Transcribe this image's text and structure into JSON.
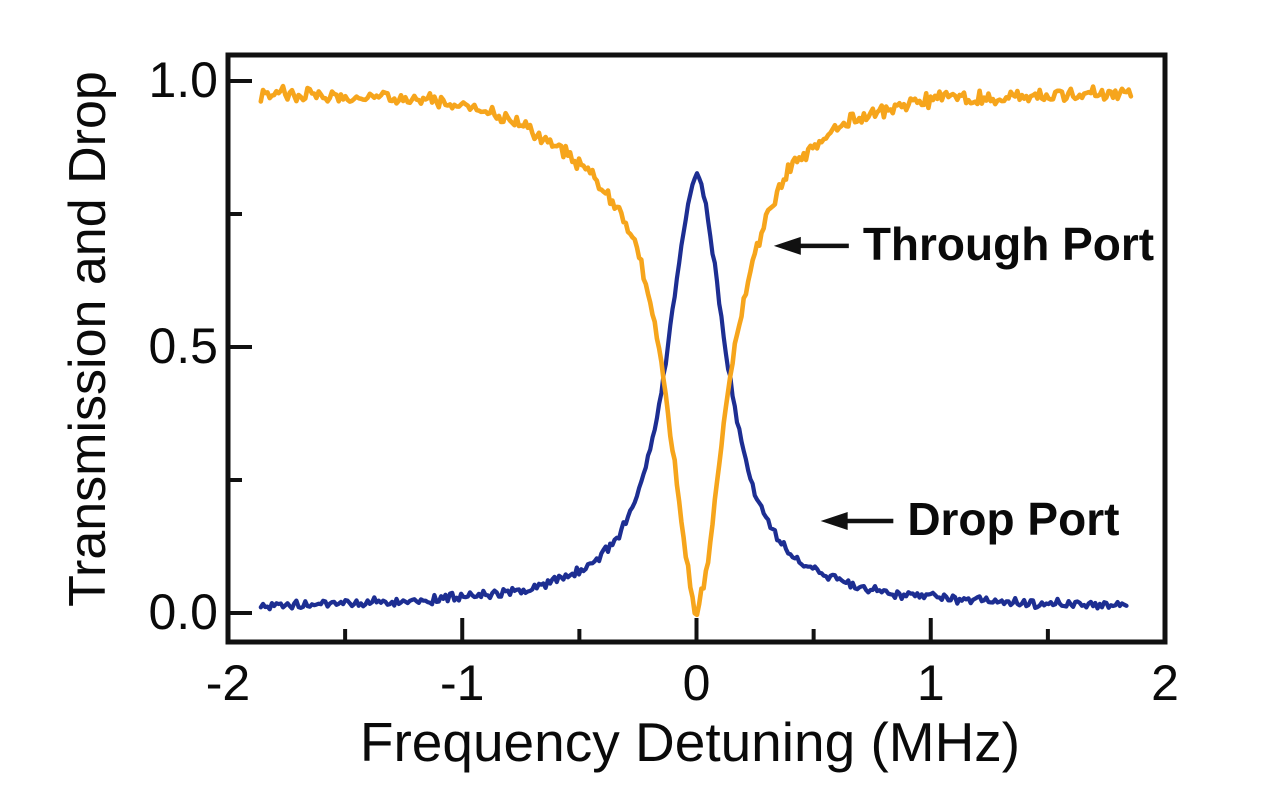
{
  "figure": {
    "kind": "experimental optical resonance spectrum, add-drop resonator",
    "background_color": "#ffffff",
    "axis_color": "#111111",
    "text_color": "#0a0a0a"
  },
  "chart_data": {
    "type": "line",
    "title": "",
    "xlabel": "Frequency Detuning (MHz)",
    "ylabel": "Transmission and Drop",
    "grid": false,
    "legend_position": "none (in-plot arrow annotations)",
    "x_axis": {
      "label": "Frequency Detuning (MHz)",
      "range": [
        -2,
        2
      ],
      "major_ticks": [
        -2,
        -1,
        0,
        1,
        2
      ],
      "major_tick_labels": [
        "-2",
        "-1",
        "0",
        "1",
        "2"
      ],
      "minor_ticks": [
        -1.5,
        -0.5,
        0.5,
        1.5
      ],
      "ticks_direction": "in"
    },
    "y_axis": {
      "label": "Transmission and Drop",
      "range_shown": [
        -0.055,
        1.05
      ],
      "major_ticks": [
        0.0,
        0.5,
        1.0
      ],
      "major_tick_labels": [
        "0.0",
        "0.5",
        "1.0"
      ],
      "minor_ticks": [
        0.25,
        0.75
      ],
      "ticks_direction": "in"
    },
    "series": [
      {
        "name": "Drop Port",
        "color": "#1D2E92",
        "line_width": 4.2,
        "noise_amplitude": 0.007,
        "shape": "Lorentzian peak, max ~0.83 at 0 MHz, baseline ~0.015, FWHM ~0.3 MHz",
        "points": [
          [
            -1.86,
            0.013
          ],
          [
            -1.7,
            0.015
          ],
          [
            -1.5,
            0.018
          ],
          [
            -1.3,
            0.021
          ],
          [
            -1.1,
            0.026
          ],
          [
            -0.95,
            0.031
          ],
          [
            -0.8,
            0.039
          ],
          [
            -0.7,
            0.047
          ],
          [
            -0.6,
            0.06
          ],
          [
            -0.5,
            0.079
          ],
          [
            -0.45,
            0.092
          ],
          [
            -0.4,
            0.11
          ],
          [
            -0.35,
            0.135
          ],
          [
            -0.3,
            0.17
          ],
          [
            -0.25,
            0.222
          ],
          [
            -0.2,
            0.3
          ],
          [
            -0.17,
            0.365
          ],
          [
            -0.14,
            0.445
          ],
          [
            -0.11,
            0.54
          ],
          [
            -0.08,
            0.64
          ],
          [
            -0.06,
            0.705
          ],
          [
            -0.04,
            0.762
          ],
          [
            -0.02,
            0.805
          ],
          [
            0.0,
            0.828
          ],
          [
            0.02,
            0.808
          ],
          [
            0.04,
            0.768
          ],
          [
            0.06,
            0.71
          ],
          [
            0.08,
            0.645
          ],
          [
            0.11,
            0.545
          ],
          [
            0.14,
            0.45
          ],
          [
            0.17,
            0.37
          ],
          [
            0.2,
            0.305
          ],
          [
            0.25,
            0.228
          ],
          [
            0.3,
            0.176
          ],
          [
            0.35,
            0.14
          ],
          [
            0.4,
            0.114
          ],
          [
            0.45,
            0.095
          ],
          [
            0.5,
            0.081
          ],
          [
            0.6,
            0.062
          ],
          [
            0.7,
            0.049
          ],
          [
            0.8,
            0.04
          ],
          [
            0.95,
            0.032
          ],
          [
            1.1,
            0.027
          ],
          [
            1.3,
            0.022
          ],
          [
            1.5,
            0.019
          ],
          [
            1.7,
            0.016
          ],
          [
            1.84,
            0.014
          ]
        ]
      },
      {
        "name": "Through Port",
        "color": "#F6A51C",
        "line_width": 4.6,
        "noise_amplitude": 0.011,
        "shape": "Lorentzian dip, min ~0.01 at 0 MHz, baseline ~0.975, FWHM ~0.55 MHz",
        "points": [
          [
            -1.86,
            0.976
          ],
          [
            -1.7,
            0.974
          ],
          [
            -1.55,
            0.972
          ],
          [
            -1.4,
            0.97
          ],
          [
            -1.25,
            0.967
          ],
          [
            -1.1,
            0.96
          ],
          [
            -1.0,
            0.953
          ],
          [
            -0.9,
            0.942
          ],
          [
            -0.8,
            0.926
          ],
          [
            -0.7,
            0.906
          ],
          [
            -0.62,
            0.886
          ],
          [
            -0.55,
            0.863
          ],
          [
            -0.48,
            0.838
          ],
          [
            -0.42,
            0.808
          ],
          [
            -0.36,
            0.772
          ],
          [
            -0.31,
            0.736
          ],
          [
            -0.27,
            0.7
          ],
          [
            -0.23,
            0.648
          ],
          [
            -0.2,
            0.592
          ],
          [
            -0.17,
            0.522
          ],
          [
            -0.14,
            0.442
          ],
          [
            -0.11,
            0.342
          ],
          [
            -0.08,
            0.232
          ],
          [
            -0.06,
            0.155
          ],
          [
            -0.04,
            0.085
          ],
          [
            -0.02,
            0.03
          ],
          [
            0.0,
            0.006
          ],
          [
            0.02,
            0.03
          ],
          [
            0.045,
            0.09
          ],
          [
            0.07,
            0.17
          ],
          [
            0.095,
            0.27
          ],
          [
            0.12,
            0.37
          ],
          [
            0.15,
            0.468
          ],
          [
            0.18,
            0.545
          ],
          [
            0.22,
            0.622
          ],
          [
            0.26,
            0.688
          ],
          [
            0.3,
            0.742
          ],
          [
            0.35,
            0.798
          ],
          [
            0.4,
            0.835
          ],
          [
            0.45,
            0.858
          ],
          [
            0.5,
            0.878
          ],
          [
            0.57,
            0.902
          ],
          [
            0.65,
            0.922
          ],
          [
            0.75,
            0.94
          ],
          [
            0.85,
            0.952
          ],
          [
            0.95,
            0.96
          ],
          [
            1.05,
            0.965
          ],
          [
            1.2,
            0.969
          ],
          [
            1.4,
            0.972
          ],
          [
            1.6,
            0.974
          ],
          [
            1.86,
            0.976
          ]
        ]
      }
    ],
    "annotations": [
      {
        "text": "Through Port",
        "text_x": 0.71,
        "text_y": 0.69,
        "arrow_tip_x": 0.33,
        "arrow_y": 0.69,
        "arrow_direction": "left"
      },
      {
        "text": "Drop Port",
        "text_x": 0.9,
        "text_y": 0.173,
        "arrow_tip_x": 0.53,
        "arrow_y": 0.173,
        "arrow_direction": "left"
      }
    ]
  }
}
